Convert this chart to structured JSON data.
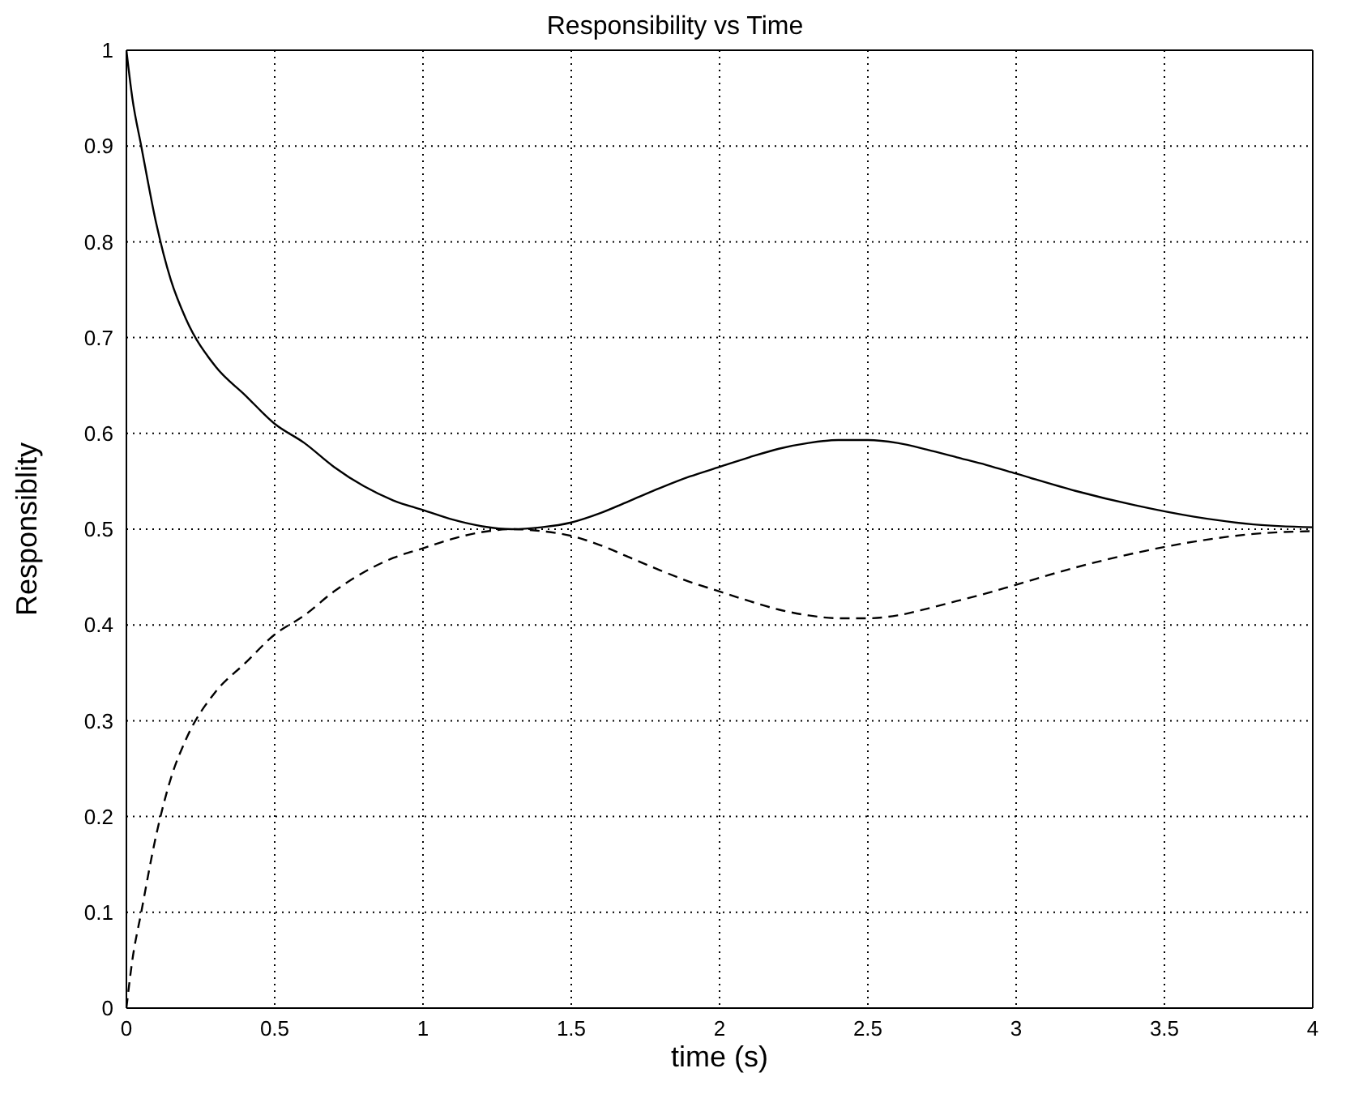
{
  "chart_data": {
    "type": "line",
    "title": "Responsibility vs Time",
    "xlabel": "time (s)",
    "ylabel": "Responsiblity",
    "x": [
      0,
      0.02,
      0.05,
      0.1,
      0.15,
      0.2,
      0.3,
      0.4,
      0.5,
      0.6,
      0.7,
      0.8,
      0.9,
      1.0,
      1.1,
      1.2,
      1.3,
      1.4,
      1.5,
      1.6,
      1.7,
      1.8,
      1.9,
      2.0,
      2.1,
      2.2,
      2.3,
      2.4,
      2.5,
      2.6,
      2.7,
      2.8,
      2.9,
      3.0,
      3.2,
      3.4,
      3.6,
      3.8,
      4.0
    ],
    "series": [
      {
        "color": "#000000",
        "line_style": "solid",
        "values": [
          1,
          0.95,
          0.9,
          0.82,
          0.76,
          0.72,
          0.67,
          0.64,
          0.61,
          0.59,
          0.565,
          0.545,
          0.53,
          0.52,
          0.51,
          0.503,
          0.5,
          0.502,
          0.507,
          0.517,
          0.53,
          0.543,
          0.555,
          0.565,
          0.575,
          0.584,
          0.59,
          0.593,
          0.593,
          0.59,
          0.583,
          0.575,
          0.567,
          0.558,
          0.54,
          0.525,
          0.513,
          0.505,
          0.502
        ]
      },
      {
        "color": "#000000",
        "line_style": "dashed",
        "values": [
          0,
          0.05,
          0.1,
          0.18,
          0.24,
          0.28,
          0.33,
          0.36,
          0.39,
          0.41,
          0.435,
          0.455,
          0.47,
          0.48,
          0.49,
          0.497,
          0.5,
          0.498,
          0.493,
          0.483,
          0.47,
          0.457,
          0.445,
          0.435,
          0.425,
          0.416,
          0.41,
          0.407,
          0.407,
          0.41,
          0.417,
          0.425,
          0.433,
          0.442,
          0.46,
          0.475,
          0.487,
          0.495,
          0.498
        ]
      }
    ],
    "xlim": [
      0,
      4
    ],
    "xticks": [
      0,
      0.5,
      1,
      1.5,
      2,
      2.5,
      3,
      3.5,
      4
    ],
    "ylim": [
      0,
      1
    ],
    "yticks": [
      0,
      0.1,
      0.2,
      0.3,
      0.4,
      0.5,
      0.6,
      0.7,
      0.8,
      0.9,
      1
    ],
    "grid": true,
    "marker": "none"
  }
}
